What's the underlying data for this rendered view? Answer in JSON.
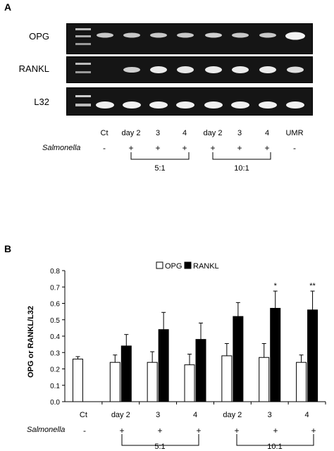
{
  "panel_a": {
    "letter": "A",
    "gels": [
      {
        "label": "OPG"
      },
      {
        "label": "RANKL"
      },
      {
        "label": "L32"
      }
    ],
    "lane_labels": [
      "Ct",
      "day 2",
      "3",
      "4",
      "day 2",
      "3",
      "4",
      "UMR"
    ],
    "treatment_label": "Salmonella",
    "signs": [
      "-",
      "+",
      "+",
      "+",
      "+",
      "+",
      "+",
      "-"
    ],
    "ratios": [
      "5:1",
      "10:1"
    ]
  },
  "panel_b": {
    "letter": "B",
    "treatment_label": "Salmonella",
    "signs": [
      "-",
      "+",
      "+",
      "+",
      "+",
      "+",
      "+"
    ],
    "ratios": [
      "5:1",
      "10:1"
    ]
  },
  "chart_data": {
    "type": "bar",
    "ylabel": "OPG or RANKL/L32",
    "xlabel": "",
    "ylim": [
      0,
      0.8
    ],
    "yticks": [
      "0.0",
      "0.1",
      "0.2",
      "0.3",
      "0.4",
      "0.5",
      "0.6",
      "0.7",
      "0.8"
    ],
    "categories": [
      "Ct",
      "day 2",
      "3",
      "4",
      "day 2",
      "3",
      "4"
    ],
    "legend_position": "top",
    "series": [
      {
        "name": "OPG",
        "color": "#ffffff",
        "values": [
          0.26,
          0.24,
          0.24,
          0.225,
          0.28,
          0.27,
          0.24
        ],
        "errors": [
          0.015,
          0.045,
          0.065,
          0.065,
          0.075,
          0.085,
          0.045
        ]
      },
      {
        "name": "RANKL",
        "color": "#000000",
        "values": [
          null,
          0.34,
          0.44,
          0.38,
          0.52,
          0.57,
          0.56
        ],
        "errors": [
          null,
          0.07,
          0.105,
          0.1,
          0.085,
          0.105,
          0.115
        ]
      }
    ],
    "annotations": [
      {
        "category_index": 5,
        "text": "*"
      },
      {
        "category_index": 6,
        "text": "**"
      }
    ]
  }
}
